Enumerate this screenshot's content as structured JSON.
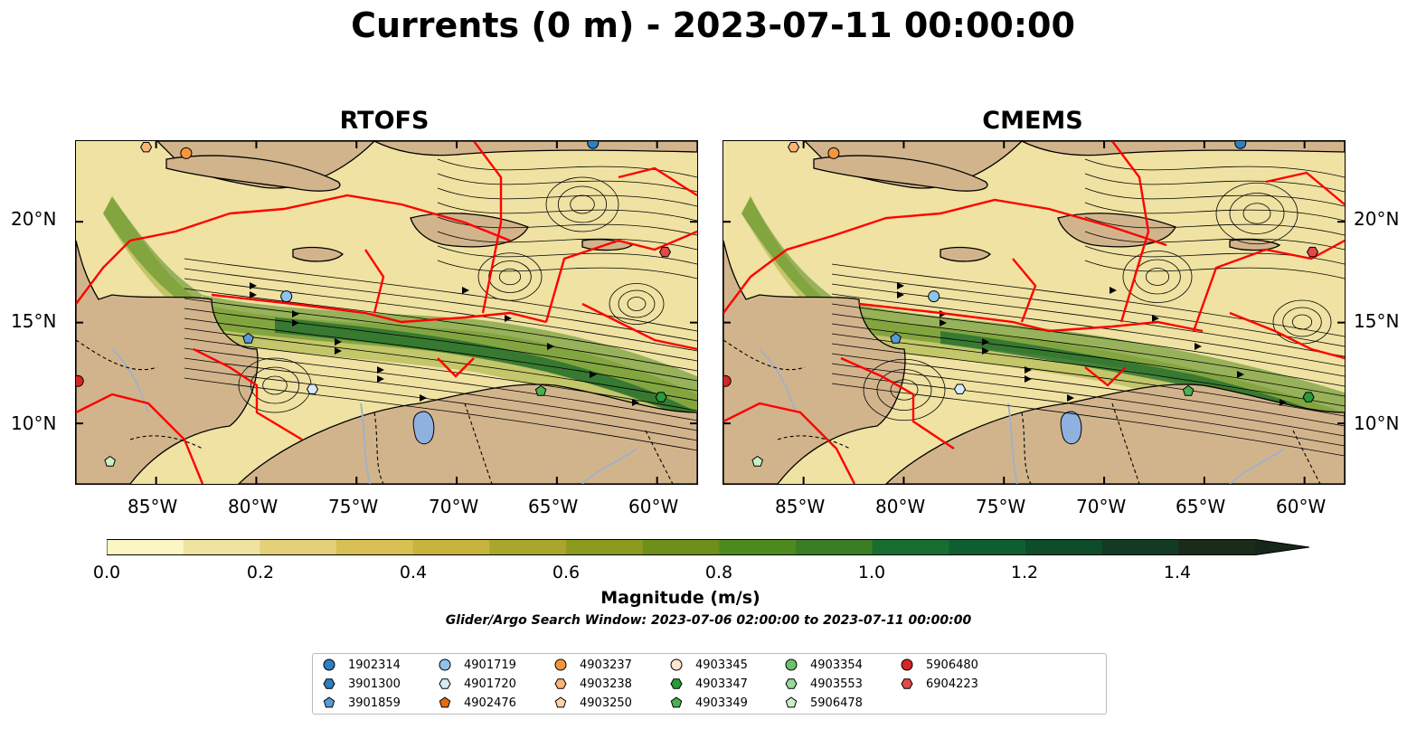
{
  "title": "Currents (0 m) - 2023-07-11 00:00:00",
  "panels": [
    {
      "title": "RTOFS"
    },
    {
      "title": "CMEMS"
    }
  ],
  "lat_labels": [
    "20°N",
    "15°N",
    "10°N"
  ],
  "lon_labels": [
    "85°W",
    "80°W",
    "75°W",
    "70°W",
    "65°W",
    "60°W"
  ],
  "extent": {
    "lon": [
      -89,
      -58
    ],
    "lat": [
      7,
      24
    ]
  },
  "colorbar": {
    "label": "Magnitude (m/s)",
    "ticks": [
      "0.0",
      "0.2",
      "0.4",
      "0.6",
      "0.8",
      "1.0",
      "1.2",
      "1.4"
    ],
    "range": [
      0,
      1.5
    ],
    "colors": [
      "#fcf6c4",
      "#efe3a0",
      "#e3d079",
      "#d8c055",
      "#c6b43c",
      "#aaa52d",
      "#8c9a1e",
      "#6e8f1a",
      "#4f8a1f",
      "#3a7d25",
      "#176e31",
      "#0f5e31",
      "#0e4c2a",
      "#133b23",
      "#1a2b1a"
    ],
    "extend": "max"
  },
  "search_window": "Glider/Argo Search Window: 2023-07-06 02:00:00 to 2023-07-11 00:00:00",
  "legend": [
    {
      "id": "1902314",
      "marker": "circle",
      "color": "#2c7fc1"
    },
    {
      "id": "3901300",
      "marker": "hexagon",
      "color": "#2c7fc1"
    },
    {
      "id": "3901859",
      "marker": "pentagon",
      "color": "#5b9bd5"
    },
    {
      "id": "4901719",
      "marker": "circle",
      "color": "#8ec4ec"
    },
    {
      "id": "4901720",
      "marker": "hexagon",
      "color": "#d6ebfa"
    },
    {
      "id": "4902476",
      "marker": "pentagon",
      "color": "#e66d0a"
    },
    {
      "id": "4903237",
      "marker": "circle",
      "color": "#f5963e"
    },
    {
      "id": "4903238",
      "marker": "hexagon",
      "color": "#f9b476"
    },
    {
      "id": "4903250",
      "marker": "pentagon",
      "color": "#fbd3a8"
    },
    {
      "id": "4903345",
      "marker": "circle",
      "color": "#fce6d2"
    },
    {
      "id": "4903347",
      "marker": "hexagon",
      "color": "#2b9a3a"
    },
    {
      "id": "4903349",
      "marker": "pentagon",
      "color": "#4caf50"
    },
    {
      "id": "4903354",
      "marker": "circle",
      "color": "#6cc16a"
    },
    {
      "id": "4903553",
      "marker": "hexagon",
      "color": "#9ad899"
    },
    {
      "id": "5906478",
      "marker": "pentagon",
      "color": "#c9efc6"
    },
    {
      "id": "5906480",
      "marker": "circle",
      "color": "#d32626"
    },
    {
      "id": "6904223",
      "marker": "hexagon",
      "color": "#e24a4a"
    }
  ],
  "floats": [
    {
      "id": "1902314",
      "lon": -63.2,
      "lat": 23.9
    },
    {
      "id": "4901719",
      "lon": -78.5,
      "lat": 16.3
    },
    {
      "id": "3901859",
      "lon": -80.4,
      "lat": 14.2
    },
    {
      "id": "4901720",
      "lon": -77.2,
      "lat": 11.7
    },
    {
      "id": "4903237",
      "lon": -83.5,
      "lat": 23.4
    },
    {
      "id": "4903238",
      "lon": -85.5,
      "lat": 23.7
    },
    {
      "id": "4903349",
      "lon": -65.8,
      "lat": 11.6
    },
    {
      "id": "4903347",
      "lon": -59.8,
      "lat": 11.3
    },
    {
      "id": "5906478",
      "lon": -87.3,
      "lat": 8.1
    },
    {
      "id": "6904223",
      "lon": -59.6,
      "lat": 18.5
    },
    {
      "id": "5906480",
      "lon": -88.9,
      "lat": 12.1
    }
  ]
}
